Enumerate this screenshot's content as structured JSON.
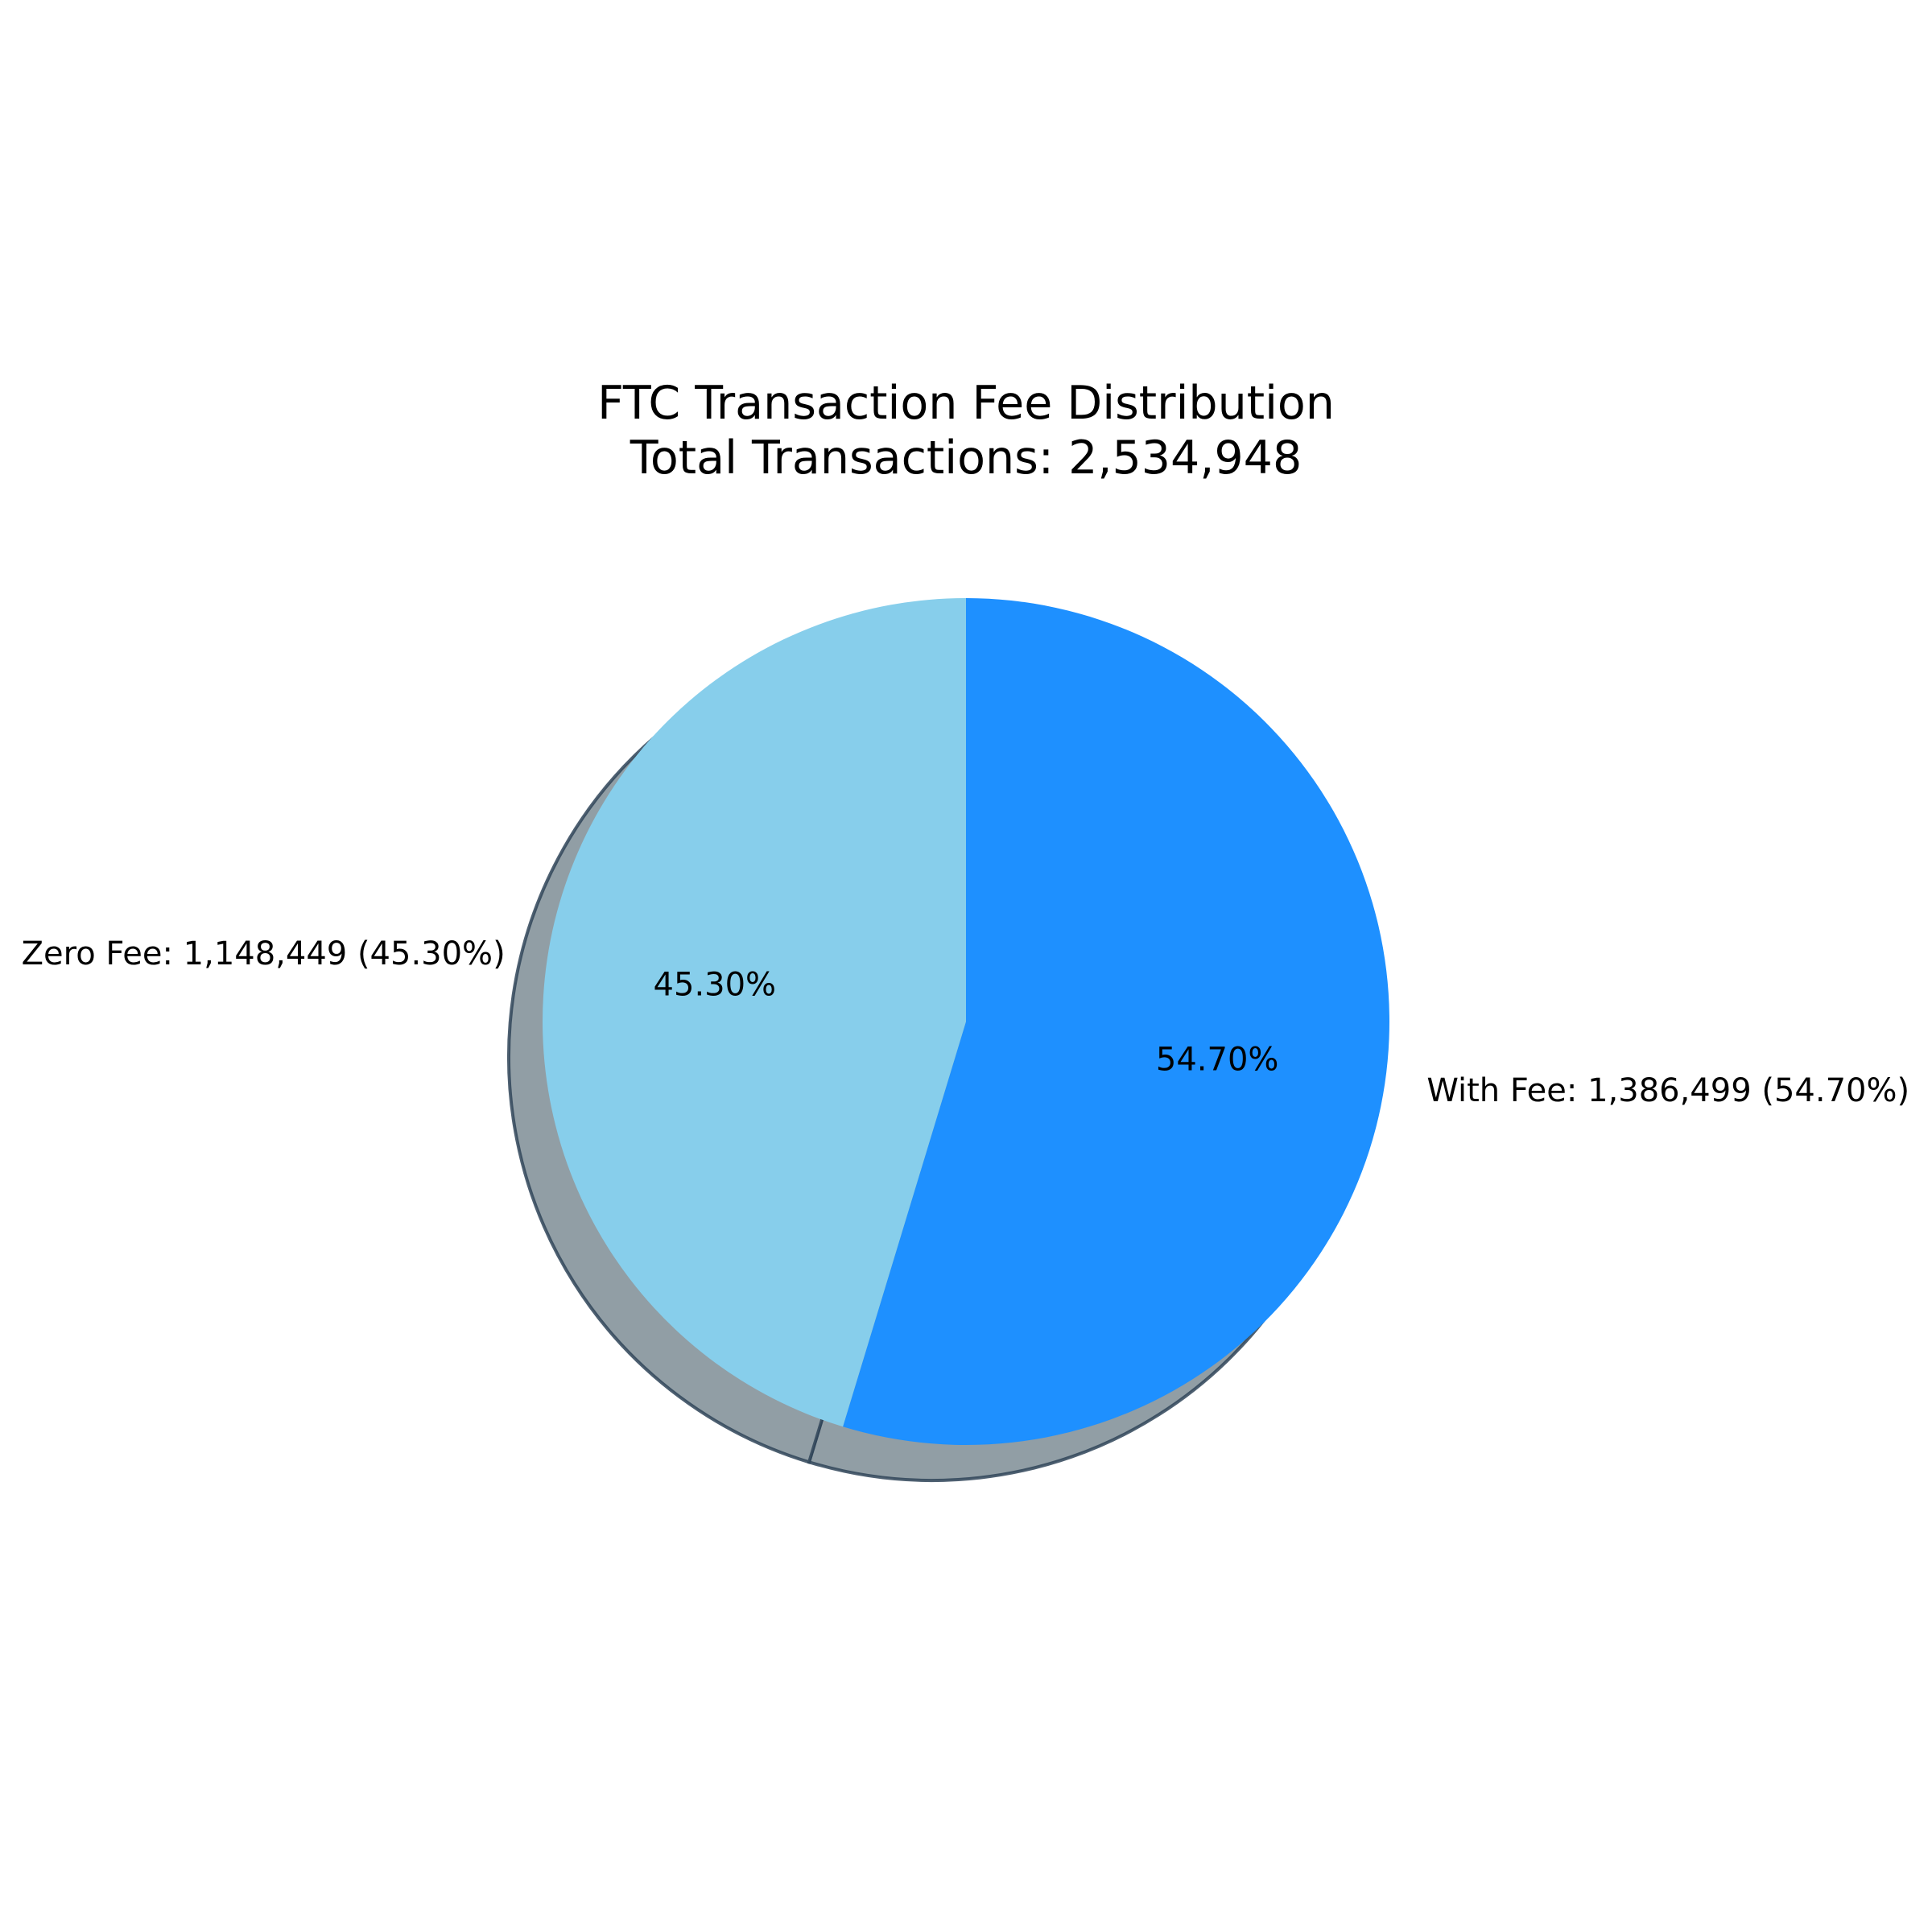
{
  "chart_data": {
    "type": "pie",
    "title": "FTC Transaction Fee Distribution",
    "subtitle": "Total Transactions: 2,534,948",
    "total": 2534948,
    "shadow": true,
    "start_angle_deg": 90,
    "direction": "clockwise",
    "slices": [
      {
        "name": "With Fee",
        "value": 1386499,
        "percent": 54.7,
        "label": "With Fee: 1,386,499 (54.70%)",
        "pct_text": "54.70%",
        "color": "#1E90FF"
      },
      {
        "name": "Zero Fee",
        "value": 1148449,
        "percent": 45.3,
        "label": "Zero Fee: 1,148,449 (45.30%)",
        "pct_text": "45.30%",
        "color": "#87CEEB"
      }
    ],
    "shadow_color": "#919EA5",
    "shadow_edge_color": "#2F4458"
  }
}
